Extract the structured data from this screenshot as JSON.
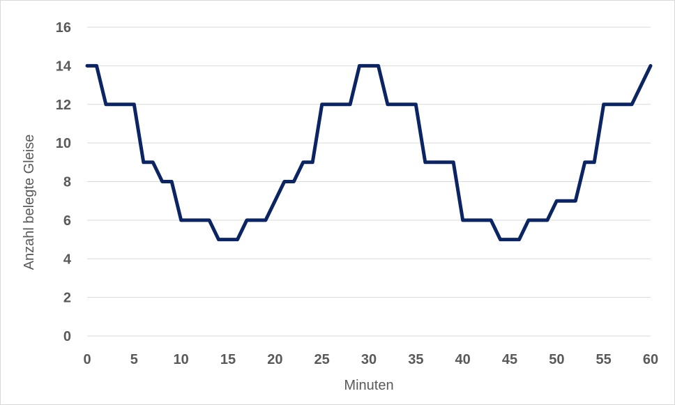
{
  "chart_data": {
    "type": "line",
    "title": "",
    "xlabel": "Minuten",
    "ylabel": "Anzahl belegte Gleise",
    "xlim": [
      0,
      60
    ],
    "ylim": [
      0,
      16
    ],
    "x_ticks": [
      0,
      5,
      10,
      15,
      20,
      25,
      30,
      35,
      40,
      45,
      50,
      55,
      60
    ],
    "y_ticks": [
      0,
      2,
      4,
      6,
      8,
      10,
      12,
      14,
      16
    ],
    "grid": true,
    "legend": "none",
    "line_color": "#0b2463",
    "series": [
      {
        "x": [
          0,
          1,
          2,
          5,
          6,
          7,
          8,
          9,
          10,
          13,
          14,
          16,
          17,
          19,
          21,
          22,
          23,
          24,
          25,
          28,
          29,
          31,
          32,
          35,
          36,
          39,
          40,
          43,
          44,
          46,
          47,
          49,
          50,
          52,
          53,
          54,
          55,
          58,
          60
        ],
        "values": [
          14,
          14,
          12,
          12,
          9,
          9,
          8,
          8,
          6,
          6,
          5,
          5,
          6,
          6,
          8,
          8,
          9,
          9,
          12,
          12,
          14,
          14,
          12,
          12,
          9,
          9,
          6,
          6,
          5,
          5,
          6,
          6,
          7,
          7,
          9,
          9,
          12,
          12,
          14
        ]
      }
    ]
  }
}
